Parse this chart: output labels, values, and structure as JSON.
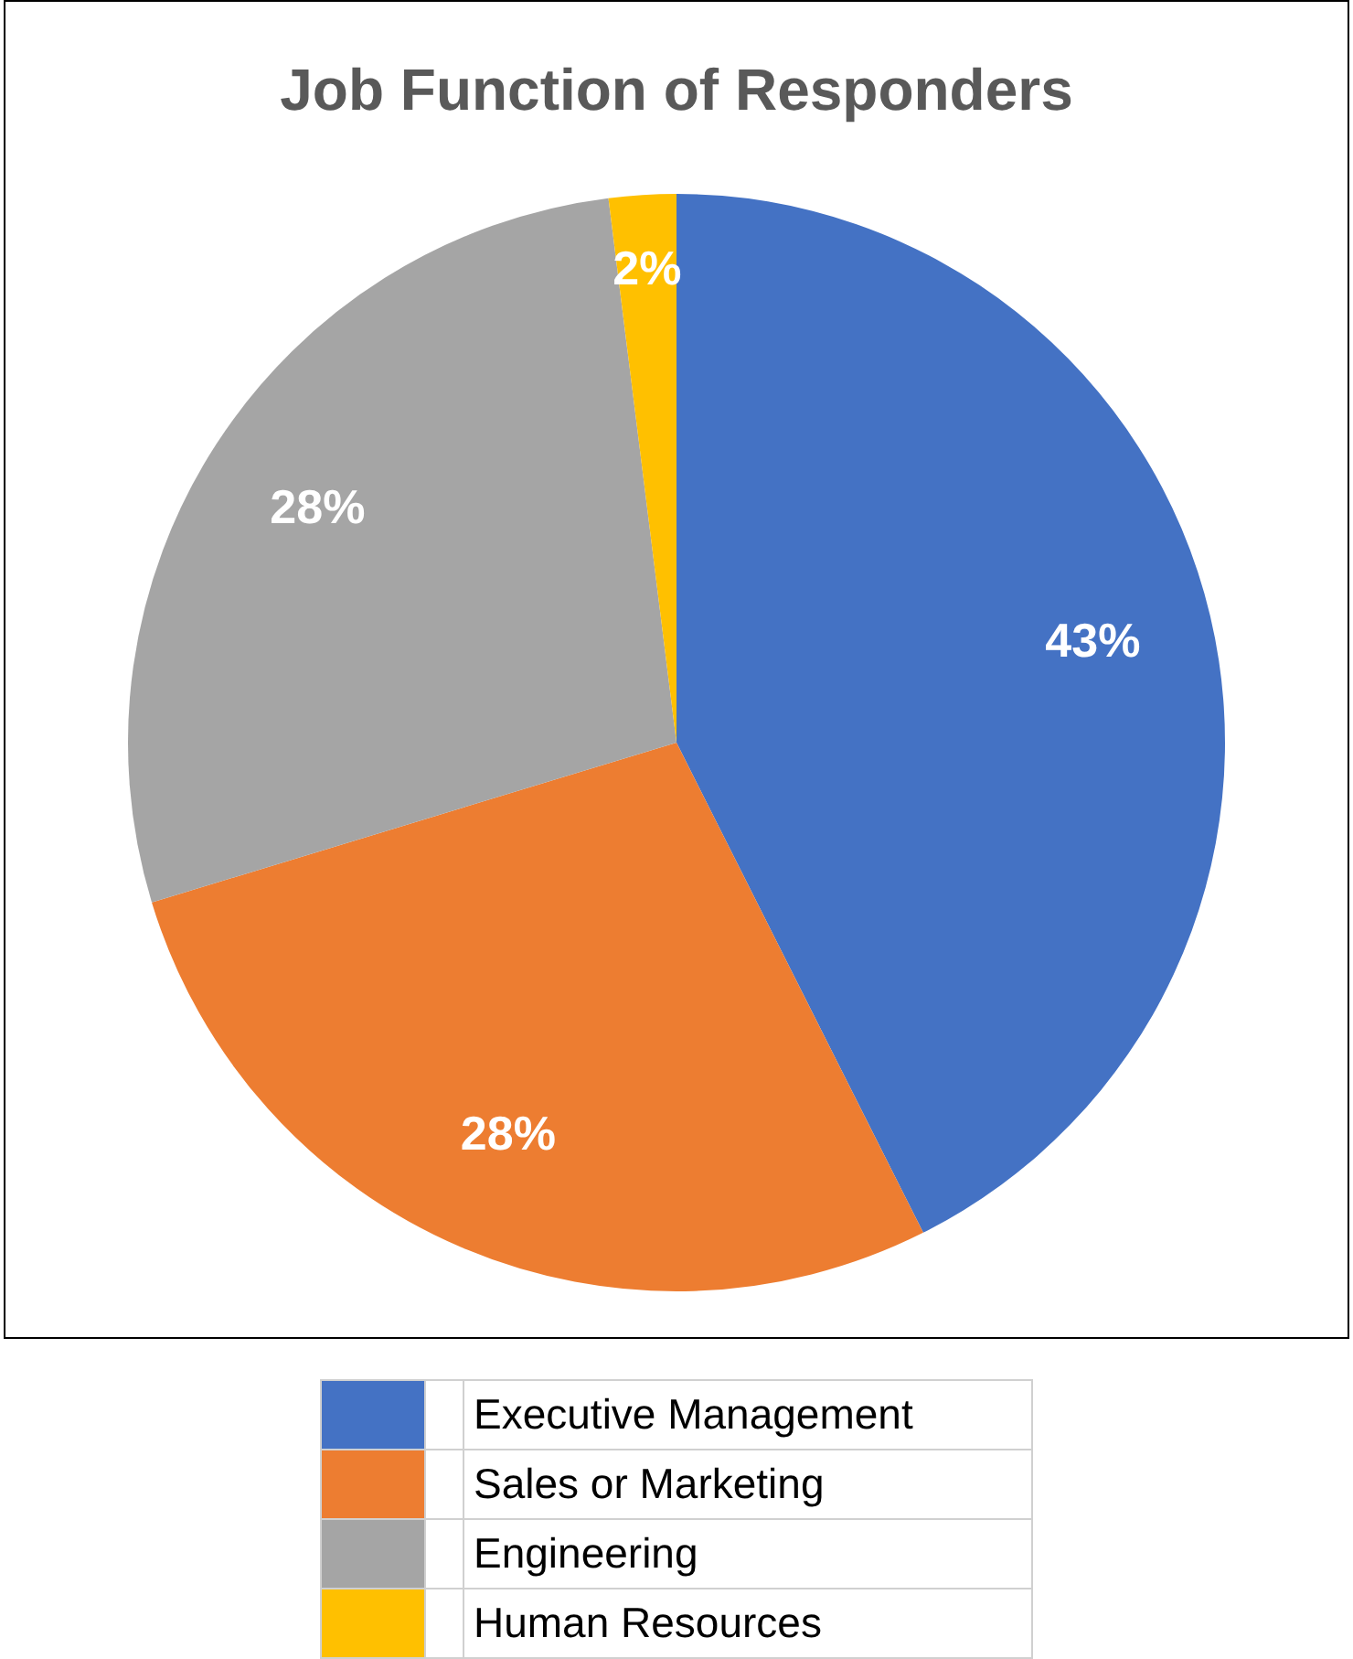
{
  "chart_data": {
    "type": "pie",
    "title": "Job Function of Responders",
    "categories": [
      "Executive Management",
      "Sales or Marketing",
      "Engineering",
      "Human Resources"
    ],
    "values": [
      43,
      28,
      28,
      2
    ],
    "colors": [
      "#4472c4",
      "#ed7d31",
      "#a5a5a5",
      "#ffc000"
    ],
    "value_labels": [
      "43%",
      "28%",
      "28%",
      "2%"
    ],
    "legend": "bottom"
  }
}
